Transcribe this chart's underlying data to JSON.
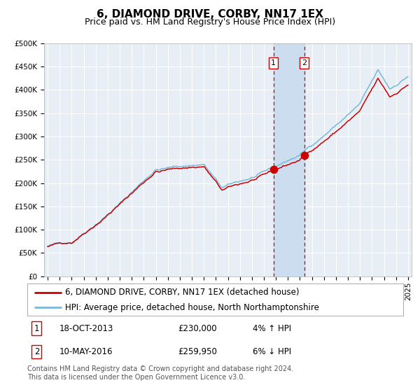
{
  "title": "6, DIAMOND DRIVE, CORBY, NN17 1EX",
  "subtitle": "Price paid vs. HM Land Registry's House Price Index (HPI)",
  "ylim": [
    0,
    500000
  ],
  "yticks": [
    0,
    50000,
    100000,
    150000,
    200000,
    250000,
    300000,
    350000,
    400000,
    450000,
    500000
  ],
  "ytick_labels": [
    "£0",
    "£50K",
    "£100K",
    "£150K",
    "£200K",
    "£250K",
    "£300K",
    "£350K",
    "£400K",
    "£450K",
    "£500K"
  ],
  "year_start": 1995,
  "year_end": 2025,
  "hpi_color": "#7ab8d9",
  "price_color": "#cc0000",
  "marker_color": "#cc0000",
  "bg_color": "#e8eef5",
  "grid_color": "#ffffff",
  "sale1_price": 230000,
  "sale1_year": 2013.8,
  "sale2_price": 259950,
  "sale2_year": 2016.37,
  "shade_color": "#ccddf0",
  "legend_line1": "6, DIAMOND DRIVE, CORBY, NN17 1EX (detached house)",
  "legend_line2": "HPI: Average price, detached house, North Northamptonshire",
  "table_row1": [
    "1",
    "18-OCT-2013",
    "£230,000",
    "4% ↑ HPI"
  ],
  "table_row2": [
    "2",
    "10-MAY-2016",
    "£259,950",
    "6% ↓ HPI"
  ],
  "footnote": "Contains HM Land Registry data © Crown copyright and database right 2024.\nThis data is licensed under the Open Government Licence v3.0.",
  "title_fontsize": 11,
  "subtitle_fontsize": 9,
  "tick_fontsize": 7.5,
  "legend_fontsize": 8.5,
  "table_fontsize": 8.5,
  "footnote_fontsize": 7
}
